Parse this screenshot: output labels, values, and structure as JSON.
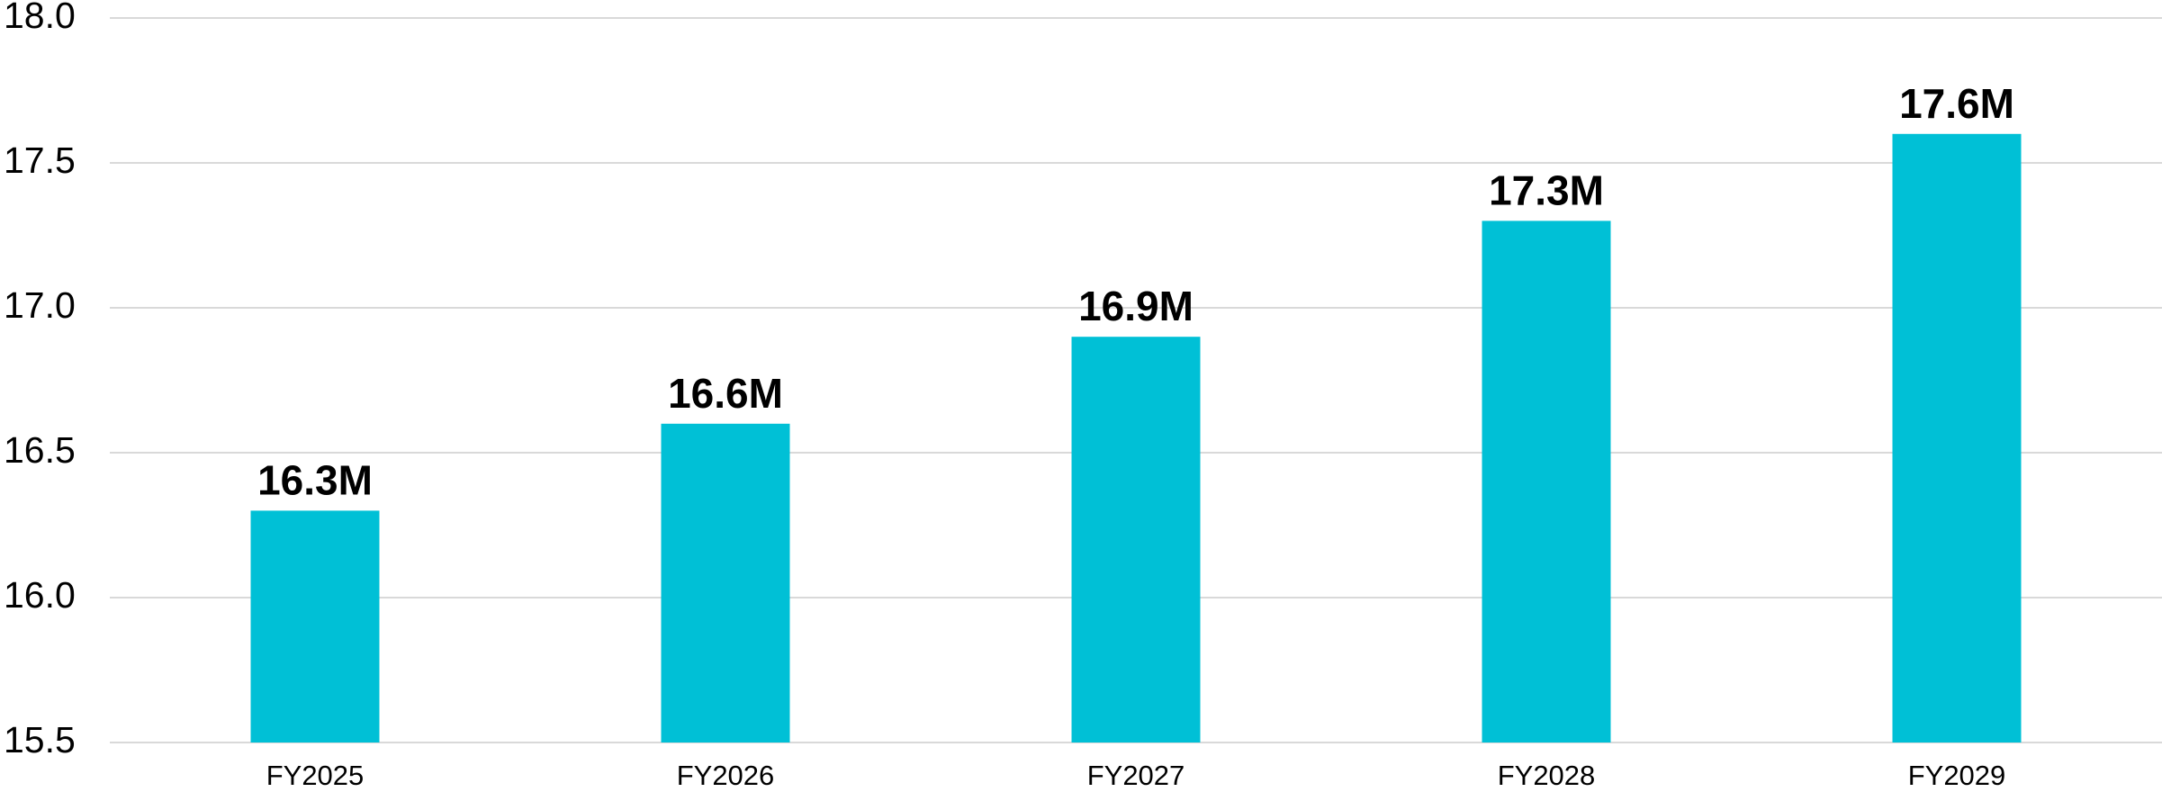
{
  "chart_data": {
    "type": "bar",
    "title": "",
    "xlabel": "",
    "ylabel": "",
    "categories": [
      "FY2025",
      "FY2026",
      "FY2027",
      "FY2028",
      "FY2029"
    ],
    "values": [
      16.3,
      16.6,
      16.9,
      17.3,
      17.6
    ],
    "data_labels": [
      "16.3M",
      "16.6M",
      "16.9M",
      "17.3M",
      "17.6M"
    ],
    "ylim": [
      15.5,
      18.0
    ],
    "yticks": [
      15.5,
      16.0,
      16.5,
      17.0,
      17.5,
      18.0
    ],
    "ytick_labels": [
      "15.5",
      "16.0",
      "16.5",
      "17.0",
      "17.5",
      "18.0"
    ],
    "grid": true,
    "legend": "none",
    "colors": {
      "bar": "#00C0D6",
      "grid": "#D9D9D9",
      "text": "#000000"
    }
  }
}
